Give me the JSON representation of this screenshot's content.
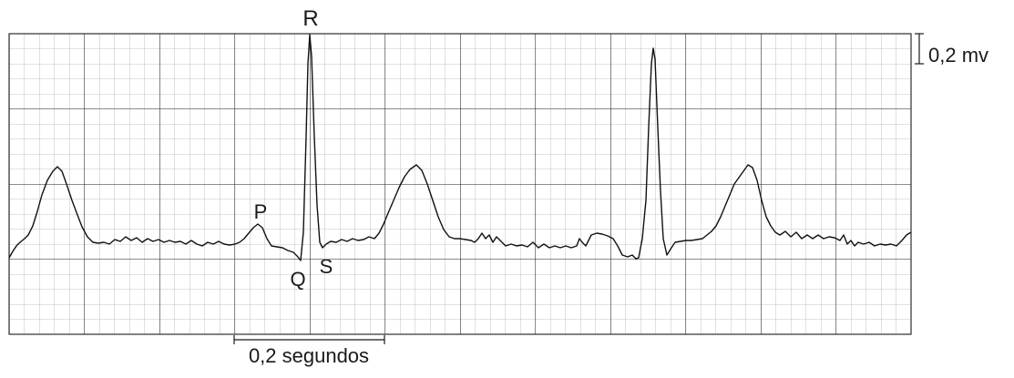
{
  "labels": {
    "r": "R",
    "p": "P",
    "q": "Q",
    "s": "S",
    "voltage_scale": "0,2 mv",
    "time_scale": "0,2 segundos"
  },
  "colors": {
    "fine_grid": "#b3b3b3",
    "major_grid": "#1a1a1a",
    "trace": "#111111",
    "text": "#1a1a1a"
  }
}
